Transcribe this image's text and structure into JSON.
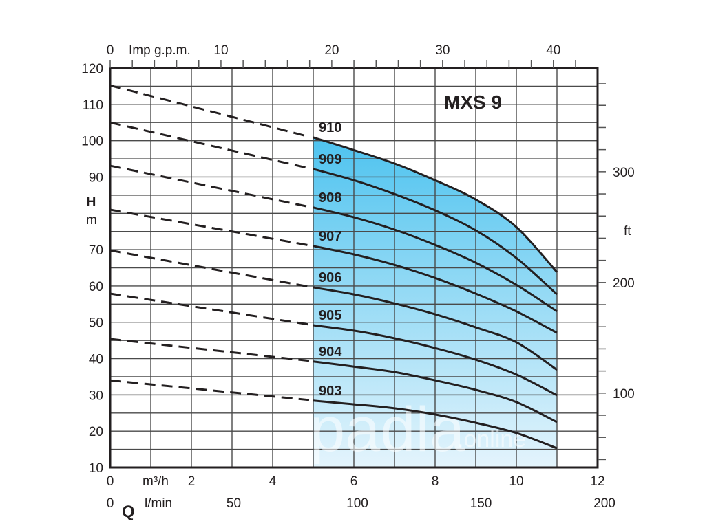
{
  "chart_data": {
    "type": "line",
    "title": "MXS 9",
    "xlabel": "Q",
    "ylabel": "H",
    "x_primary": {
      "unit": "m³/h",
      "range": [
        0,
        12
      ],
      "ticks": [
        0,
        2,
        4,
        6,
        8,
        10,
        12
      ],
      "tick_labels": [
        "0",
        "2",
        "4",
        "6",
        "8",
        "10",
        "12"
      ],
      "minor_step": 1
    },
    "x_secondary_bottom": {
      "unit": "l/min",
      "range": [
        0,
        200
      ],
      "ticks": [
        0,
        50,
        100,
        150,
        200
      ],
      "tick_labels": [
        "0",
        "50",
        "100",
        "150",
        "200"
      ]
    },
    "x_secondary_top": {
      "unit": "Imp g.p.m.",
      "range": [
        0,
        43.99
      ],
      "ticks": [
        0,
        10,
        20,
        30,
        40
      ],
      "tick_labels": [
        "0",
        "10",
        "20",
        "30",
        "40"
      ],
      "minor_step": 2
    },
    "y_primary": {
      "unit": "m",
      "range": [
        10,
        120
      ],
      "ticks": [
        10,
        20,
        30,
        40,
        50,
        60,
        70,
        90,
        100,
        110,
        120
      ],
      "tick_labels": [
        "10",
        "20",
        "30",
        "40",
        "50",
        "60",
        "70",
        "90",
        "100",
        "110",
        "120"
      ],
      "minor_step": 5
    },
    "y_secondary": {
      "unit": "ft",
      "range": [
        32.8,
        393.7
      ],
      "ticks": [
        100,
        200,
        300
      ],
      "tick_labels": [
        "100",
        "200",
        "300"
      ],
      "minor_step": 20
    },
    "grid": true,
    "operating_range": {
      "q_min": 5,
      "q_max": 11
    },
    "series": [
      {
        "name": "910",
        "dashed": {
          "x": [
            0,
            5
          ],
          "y": [
            115.2,
            100.9
          ]
        },
        "x": [
          5,
          6,
          7,
          8,
          9,
          10,
          11
        ],
        "y": [
          100.9,
          97.4,
          93.7,
          89.1,
          83.8,
          76.2,
          63.8
        ]
      },
      {
        "name": "909",
        "dashed": {
          "x": [
            0,
            5
          ],
          "y": [
            105.0,
            92.2
          ]
        },
        "x": [
          5,
          6,
          7,
          8,
          9,
          10,
          11
        ],
        "y": [
          92.2,
          89.1,
          85.3,
          80.8,
          75.3,
          67.7,
          57.7
        ]
      },
      {
        "name": "908",
        "dashed": {
          "x": [
            0,
            5
          ],
          "y": [
            93.1,
            81.6
          ]
        },
        "x": [
          5,
          6,
          7,
          8,
          9,
          10,
          11
        ],
        "y": [
          81.6,
          78.9,
          75.5,
          71.3,
          66.4,
          60.3,
          53.0
        ]
      },
      {
        "name": "907",
        "dashed": {
          "x": [
            0,
            5
          ],
          "y": [
            81.0,
            71.0
          ]
        },
        "x": [
          5,
          6,
          7,
          8,
          9,
          10,
          11
        ],
        "y": [
          71.0,
          68.7,
          65.8,
          62.2,
          57.9,
          53.0,
          47.1
        ]
      },
      {
        "name": "906",
        "dashed": {
          "x": [
            0,
            5
          ],
          "y": [
            69.8,
            59.6
          ]
        },
        "x": [
          5,
          6,
          7,
          8,
          9,
          10,
          11
        ],
        "y": [
          59.6,
          57.7,
          55.2,
          52.2,
          48.6,
          44.5,
          36.9
        ]
      },
      {
        "name": "905",
        "dashed": {
          "x": [
            0,
            5
          ],
          "y": [
            57.9,
            49.2
          ]
        },
        "x": [
          5,
          6,
          7,
          8,
          9,
          10,
          11
        ],
        "y": [
          49.2,
          47.7,
          45.6,
          42.9,
          39.7,
          35.6,
          29.9
        ]
      },
      {
        "name": "904",
        "dashed": {
          "x": [
            0,
            5
          ],
          "y": [
            45.4,
            39.2
          ]
        },
        "x": [
          5,
          6,
          7,
          8,
          9,
          10,
          11
        ],
        "y": [
          39.2,
          37.8,
          36.3,
          34.0,
          31.4,
          28.0,
          22.5
        ]
      },
      {
        "name": "903",
        "dashed": {
          "x": [
            0,
            5
          ],
          "y": [
            34.0,
            28.4
          ]
        },
        "x": [
          5,
          6,
          7,
          8,
          9,
          10,
          11
        ],
        "y": [
          28.4,
          27.4,
          26.3,
          24.6,
          22.3,
          19.5,
          15.3
        ]
      }
    ],
    "colors": {
      "fill_top": "#4ec3ef",
      "fill_bottom": "#e4f4fc",
      "line": "#231f20",
      "grid": "#4a4a4a"
    }
  },
  "labels": {
    "title": "MXS 9",
    "h_symbol": "H",
    "h_unit": "m",
    "ft_unit": "ft",
    "q_symbol": "Q",
    "m3h_unit": "m³/h",
    "lmin_unit": "l/min",
    "gpm_unit": "Imp g.p.m."
  },
  "watermark": {
    "text_main": "padla",
    "text_suffix": ".online"
  }
}
